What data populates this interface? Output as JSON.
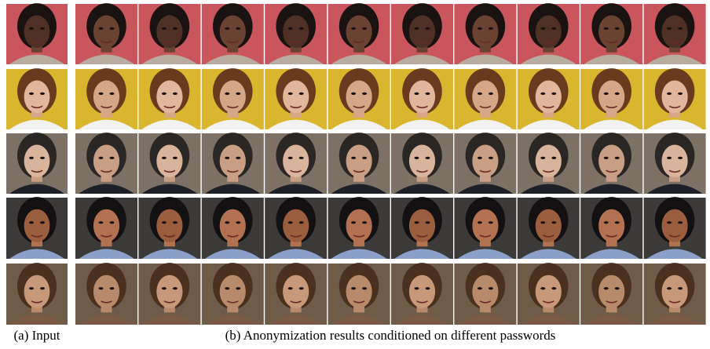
{
  "figure": {
    "captions": {
      "input": "(a) Input",
      "results": "(b) Anonymization results conditioned on different passwords"
    }
  }
}
